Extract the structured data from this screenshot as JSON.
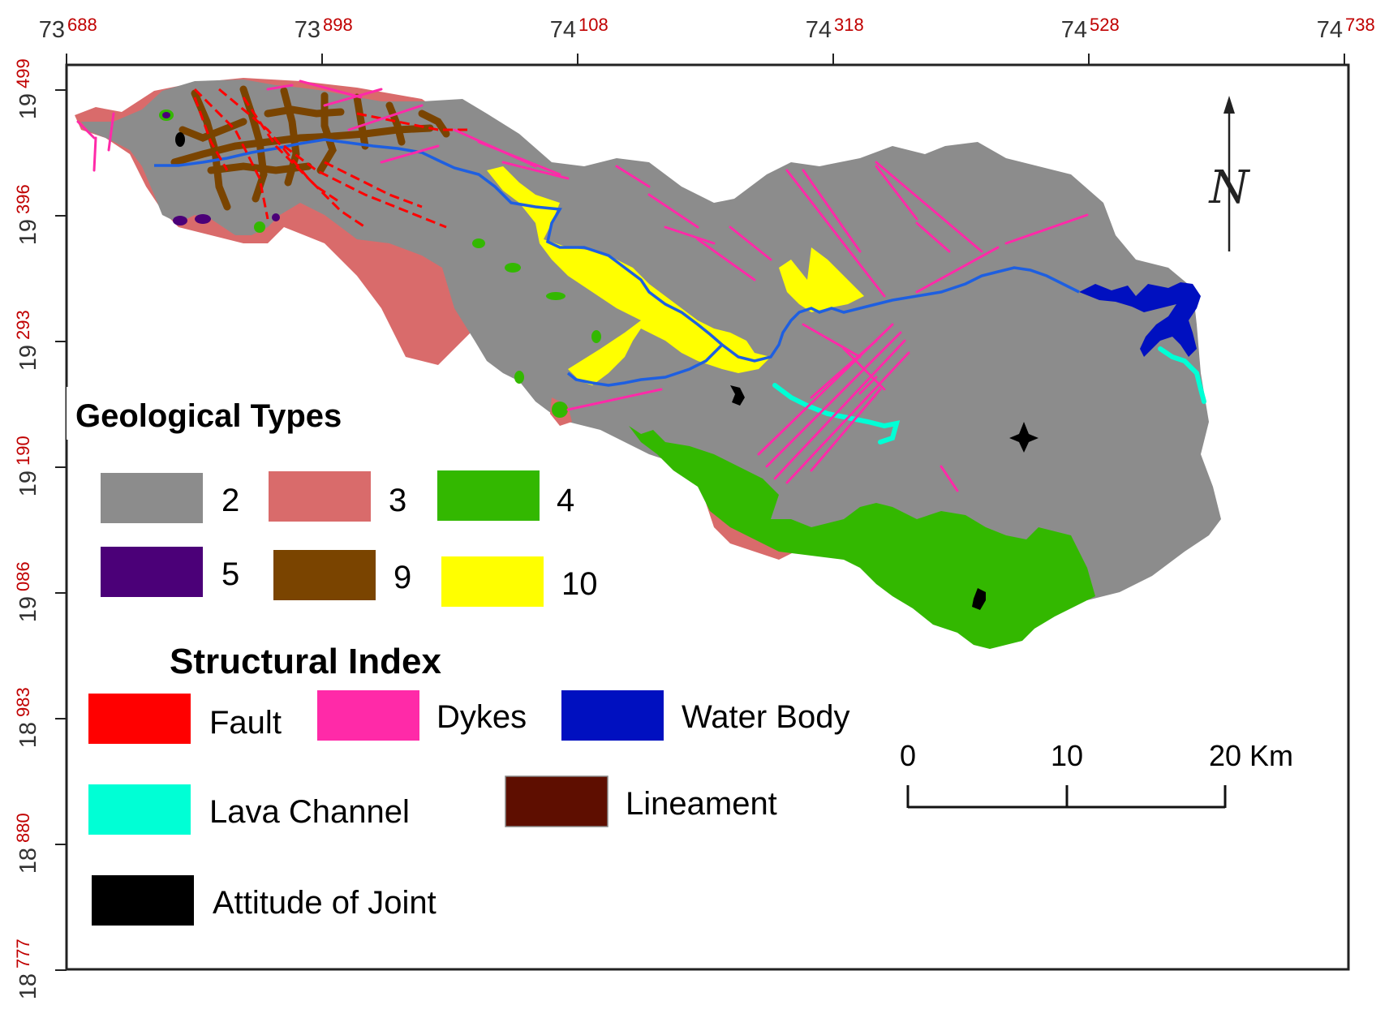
{
  "map": {
    "longitude_ticks": [
      {
        "major": "73",
        "minor": "688"
      },
      {
        "major": "73",
        "minor": "898"
      },
      {
        "major": "74",
        "minor": "108"
      },
      {
        "major": "74",
        "minor": "318"
      },
      {
        "major": "74",
        "minor": "528"
      },
      {
        "major": "74",
        "minor": "738"
      }
    ],
    "latitude_ticks": [
      {
        "major": "19",
        "minor": "499"
      },
      {
        "major": "19",
        "minor": "396"
      },
      {
        "major": "19",
        "minor": "293"
      },
      {
        "major": "19",
        "minor": "190"
      },
      {
        "major": "19",
        "minor": "086"
      },
      {
        "major": "18",
        "minor": "983"
      },
      {
        "major": "18",
        "minor": "880"
      },
      {
        "major": "18",
        "minor": "777"
      }
    ],
    "north_arrow_letter": "N",
    "colors": {
      "type_2": "#8c8c8c",
      "type_3": "#d96b6b",
      "type_4": "#33b800",
      "type_5": "#4b0078",
      "type_9": "#7a4400",
      "type_10": "#ffff00",
      "fault": "#ff0000",
      "dykes": "#ff2aa8",
      "water_body": "#0010c0",
      "river": "#1e5fe0",
      "lava_channel": "#00ffd5",
      "lineament": "#5e0e00",
      "attitude_of_joint": "#000000",
      "tick_minor": "#c00000"
    }
  },
  "legend": {
    "geological_title": "Geological Types",
    "geological_types": [
      {
        "label": "2",
        "color": "#8c8c8c"
      },
      {
        "label": "3",
        "color": "#d96b6b"
      },
      {
        "label": "4",
        "color": "#33b800"
      },
      {
        "label": "5",
        "color": "#4b0078"
      },
      {
        "label": "9",
        "color": "#7a4400"
      },
      {
        "label": "10",
        "color": "#ffff00"
      }
    ],
    "structural_title": "Structural Index",
    "structural_items": [
      {
        "label": "Fault",
        "color": "#ff0000"
      },
      {
        "label": "Dykes",
        "color": "#ff2aa8"
      },
      {
        "label": "Water Body",
        "color": "#0010c0"
      },
      {
        "label": "Lava Channel",
        "color": "#00ffd5"
      },
      {
        "label": "Lineament",
        "color": "#5e0e00"
      },
      {
        "label": "Attitude of Joint",
        "color": "#000000"
      }
    ]
  },
  "scale_bar": {
    "labels": [
      "0",
      "10",
      "20 Km"
    ]
  }
}
